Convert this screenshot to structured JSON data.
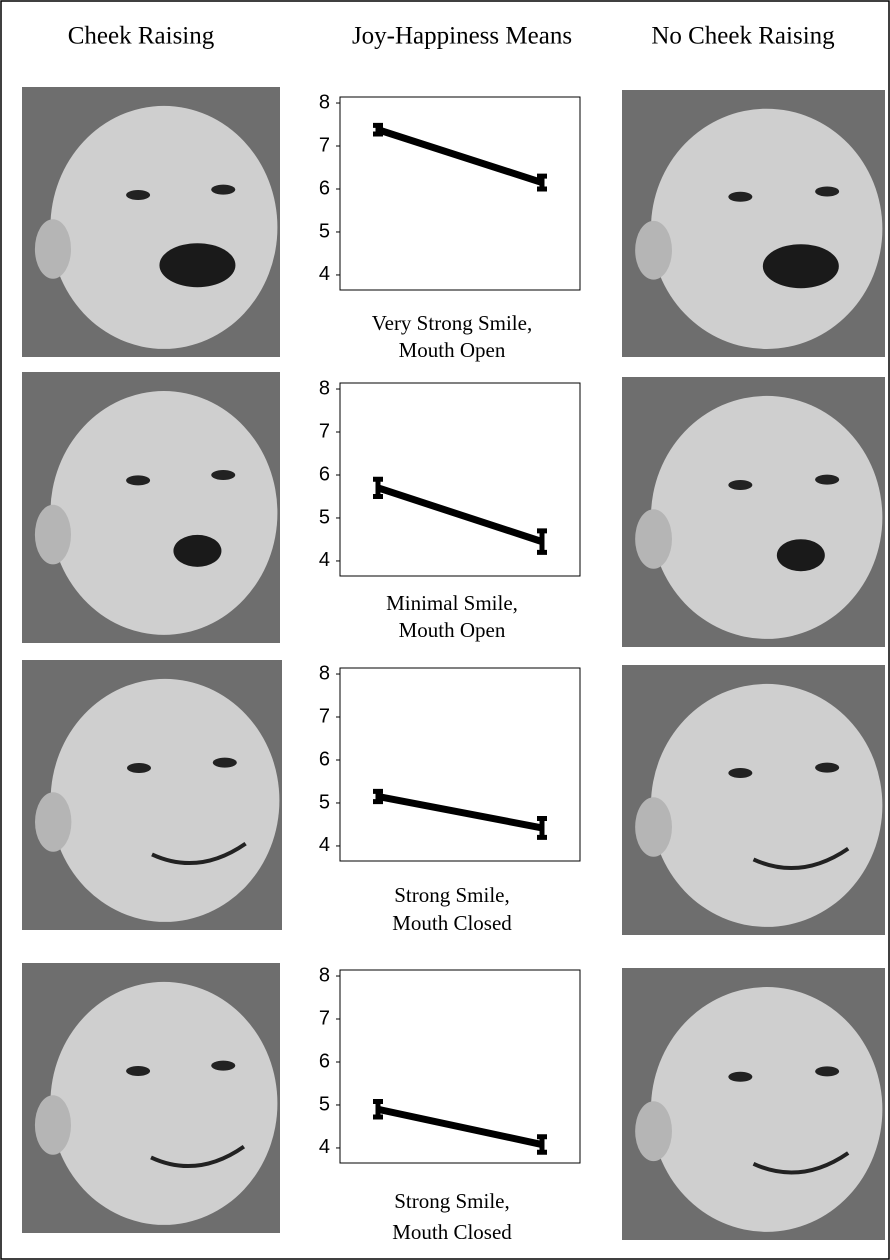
{
  "headers": [
    "Cheek Raising",
    "Joy-Happiness Means",
    "No Cheek Raising"
  ],
  "chart_data": [
    {
      "type": "line",
      "categories": [
        null,
        null
      ],
      "values": [
        7.38,
        6.15
      ],
      "errors": [
        0.1,
        0.15
      ],
      "color": "#000000",
      "ylim": [
        3.65,
        8.14
      ],
      "yticks": [
        4,
        5,
        6,
        7,
        8
      ],
      "xlabel": [
        "Very Strong Smile,",
        "Mouth Open"
      ]
    },
    {
      "type": "line",
      "categories": [
        null,
        null
      ],
      "values": [
        5.7,
        4.45
      ],
      "errors": [
        0.2,
        0.25
      ],
      "color": "#000000",
      "ylim": [
        3.65,
        8.14
      ],
      "yticks": [
        4,
        5,
        6,
        7,
        8
      ],
      "xlabel": [
        "Minimal Smile,",
        "Mouth Open"
      ]
    },
    {
      "type": "line",
      "categories": [
        null,
        null
      ],
      "values": [
        5.15,
        4.42
      ],
      "errors": [
        0.12,
        0.22
      ],
      "color": "#000000",
      "ylim": [
        3.65,
        8.14
      ],
      "yticks": [
        4,
        5,
        6,
        7,
        8
      ],
      "xlabel": [
        "Strong Smile,",
        "Mouth Closed"
      ]
    },
    {
      "type": "line",
      "categories": [
        null,
        null
      ],
      "values": [
        4.9,
        4.08
      ],
      "errors": [
        0.18,
        0.18
      ],
      "color": "#000000",
      "ylim": [
        3.65,
        8.14
      ],
      "yticks": [
        4,
        5,
        6,
        7,
        8
      ],
      "xlabel": [
        "Strong Smile,",
        "Mouth Closed"
      ]
    }
  ]
}
